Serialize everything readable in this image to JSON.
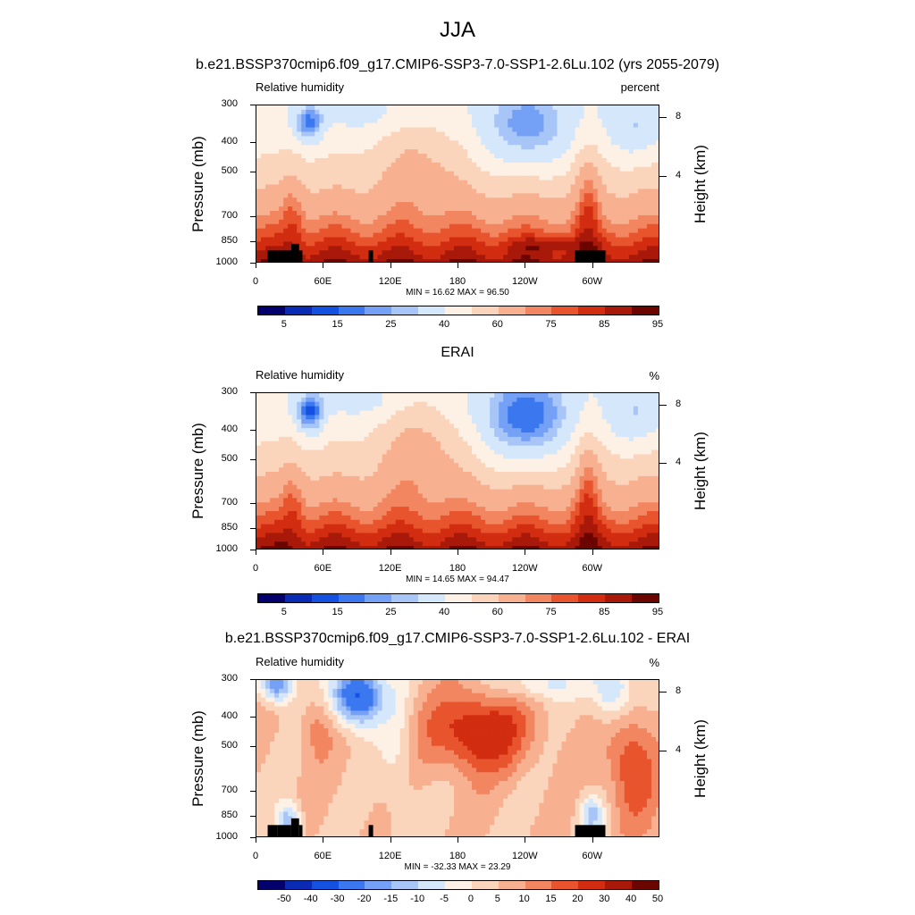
{
  "title": "JJA",
  "colors": {
    "main": [
      "#03006e",
      "#0a2cb4",
      "#1551e0",
      "#3b78ef",
      "#74a1f5",
      "#a8c5f7",
      "#d5e7fb",
      "#fdf0e4",
      "#fbd4bc",
      "#f7b191",
      "#f28660",
      "#e8542d",
      "#d22d10",
      "#a8190a",
      "#6b0500"
    ],
    "diff": [
      "#03006e",
      "#0a2cb4",
      "#1551e0",
      "#3b78ef",
      "#74a1f5",
      "#a8c5f7",
      "#d5e7fb",
      "#fdf0e4",
      "#fbd4bc",
      "#f7b191",
      "#f28660",
      "#e8542d",
      "#d22d10",
      "#a8190a",
      "#6b0500"
    ]
  },
  "chart_data": [
    {
      "type": "heatmap",
      "title": "b.e21.BSSP370cmip6.f09_g17.CMIP6-SSP3-7.0-SSP1-2.6Lu.102 (yrs 2055-2079)",
      "left_string": "Relative humidity",
      "right_string": "percent",
      "xlabel": "",
      "ylabel": "Pressure (mb)",
      "ylabel_right": "Height (km)",
      "x_ticks": [
        "0",
        "60E",
        "120E",
        "180",
        "120W",
        "60W"
      ],
      "y_ticks": [
        "300",
        "400",
        "500",
        "700",
        "850",
        "1000"
      ],
      "y_ticks_right": [
        "8",
        "4"
      ],
      "min_label": "MIN =",
      "min": "16.62",
      "max_label": "MAX =",
      "max": "96.50",
      "colorbar_labels": [
        "5",
        "15",
        "25",
        "40",
        "60",
        "75",
        "85",
        "95"
      ]
    },
    {
      "type": "heatmap",
      "title": "ERAI",
      "left_string": "Relative humidity",
      "right_string": "%",
      "xlabel": "",
      "ylabel": "Pressure (mb)",
      "ylabel_right": "Height (km)",
      "x_ticks": [
        "0",
        "60E",
        "120E",
        "180",
        "120W",
        "60W"
      ],
      "y_ticks": [
        "300",
        "400",
        "500",
        "700",
        "850",
        "1000"
      ],
      "y_ticks_right": [
        "8",
        "4"
      ],
      "min_label": "MIN =",
      "min": "14.65",
      "max_label": "MAX =",
      "max": "94.47",
      "colorbar_labels": [
        "5",
        "15",
        "25",
        "40",
        "60",
        "75",
        "85",
        "95"
      ]
    },
    {
      "type": "heatmap",
      "title": "b.e21.BSSP370cmip6.f09_g17.CMIP6-SSP3-7.0-SSP1-2.6Lu.102 - ERAI",
      "left_string": "Relative humidity",
      "right_string": "%",
      "xlabel": "",
      "ylabel": "Pressure (mb)",
      "ylabel_right": "Height (km)",
      "x_ticks": [
        "0",
        "60E",
        "120E",
        "180",
        "120W",
        "60W"
      ],
      "y_ticks": [
        "300",
        "400",
        "500",
        "700",
        "850",
        "1000"
      ],
      "y_ticks_right": [
        "8",
        "4"
      ],
      "min_label": "MIN =",
      "min": "-32.33",
      "max_label": "MAX =",
      "max": "23.29",
      "colorbar_labels": [
        "-50",
        "-40",
        "-30",
        "-20",
        "-15",
        "-10",
        "-5",
        "0",
        "5",
        "10",
        "15",
        "20",
        "30",
        "40",
        "50"
      ]
    }
  ]
}
